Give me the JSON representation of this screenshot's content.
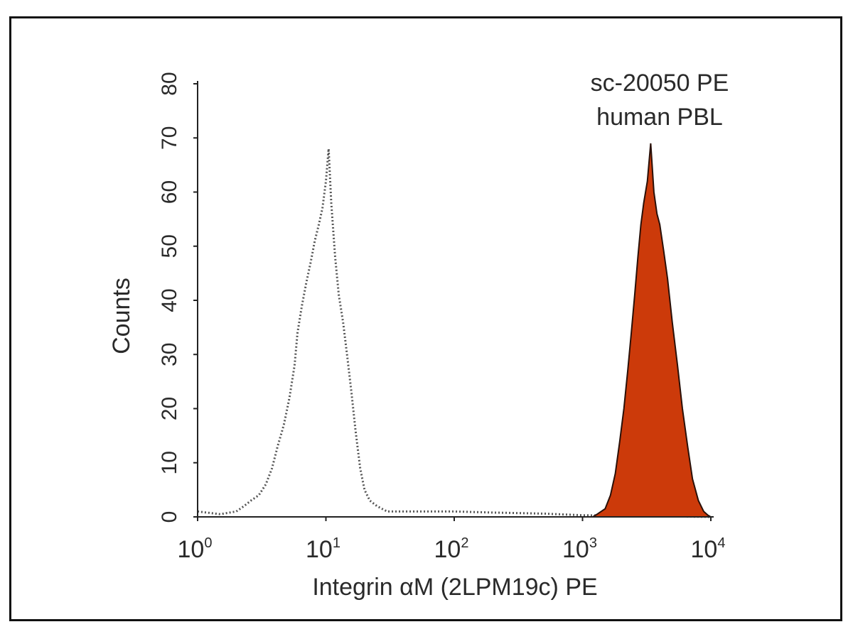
{
  "chart_data": {
    "type": "area",
    "title": "",
    "annotation": [
      "sc-20050 PE",
      "human PBL"
    ],
    "xlabel": "Integrin αM (2LPM19c) PE",
    "ylabel": "Counts",
    "xscale": "log",
    "xlim": [
      1,
      10000
    ],
    "ylim": [
      0,
      80
    ],
    "xticks": [
      {
        "base": "10",
        "exp": "0"
      },
      {
        "base": "10",
        "exp": "1"
      },
      {
        "base": "10",
        "exp": "2"
      },
      {
        "base": "10",
        "exp": "3"
      },
      {
        "base": "10",
        "exp": "4"
      }
    ],
    "yticks": [
      "0",
      "10",
      "20",
      "30",
      "40",
      "50",
      "60",
      "70",
      "80"
    ],
    "grid": false,
    "series": [
      {
        "style": "dotted-outline",
        "color": "#555555",
        "points": [
          [
            1.0,
            1
          ],
          [
            1.5,
            0.5
          ],
          [
            2.0,
            1
          ],
          [
            2.3,
            2
          ],
          [
            2.6,
            3
          ],
          [
            3.0,
            4
          ],
          [
            3.4,
            6
          ],
          [
            3.8,
            9
          ],
          [
            4.2,
            13
          ],
          [
            4.7,
            17
          ],
          [
            5.2,
            22
          ],
          [
            5.7,
            28
          ],
          [
            6.0,
            34
          ],
          [
            6.5,
            39
          ],
          [
            7.0,
            43
          ],
          [
            7.6,
            47
          ],
          [
            8.2,
            51
          ],
          [
            8.8,
            54
          ],
          [
            9.4,
            57
          ],
          [
            10.0,
            62
          ],
          [
            10.5,
            68
          ],
          [
            11.0,
            58
          ],
          [
            11.8,
            48
          ],
          [
            12.6,
            41
          ],
          [
            13.6,
            36
          ],
          [
            14.6,
            30
          ],
          [
            15.8,
            23
          ],
          [
            17.0,
            16
          ],
          [
            18.5,
            9
          ],
          [
            20.0,
            5
          ],
          [
            22.0,
            3
          ],
          [
            25.0,
            2
          ],
          [
            30.0,
            1
          ],
          [
            40.0,
            1
          ],
          [
            60.0,
            1
          ],
          [
            100.0,
            1
          ],
          [
            200.0,
            0.8
          ],
          [
            500.0,
            0.6
          ],
          [
            1000.0,
            0.3
          ],
          [
            10000.0,
            0
          ]
        ]
      },
      {
        "style": "filled",
        "color": "#cc3a0a",
        "outline": "#2a1008",
        "points": [
          [
            1200,
            0
          ],
          [
            1300,
            0.5
          ],
          [
            1500,
            1.5
          ],
          [
            1650,
            4
          ],
          [
            1800,
            8
          ],
          [
            1950,
            14
          ],
          [
            2100,
            20
          ],
          [
            2250,
            27
          ],
          [
            2400,
            34
          ],
          [
            2550,
            41
          ],
          [
            2700,
            48
          ],
          [
            2850,
            54
          ],
          [
            3000,
            58
          ],
          [
            3200,
            62
          ],
          [
            3400,
            69
          ],
          [
            3600,
            60
          ],
          [
            3800,
            56
          ],
          [
            4000,
            54
          ],
          [
            4300,
            49
          ],
          [
            4600,
            44
          ],
          [
            5000,
            36
          ],
          [
            5500,
            28
          ],
          [
            6000,
            20
          ],
          [
            6600,
            13
          ],
          [
            7200,
            7
          ],
          [
            8000,
            3
          ],
          [
            8800,
            1
          ],
          [
            9500,
            0.3
          ],
          [
            10000,
            0
          ]
        ]
      }
    ]
  }
}
